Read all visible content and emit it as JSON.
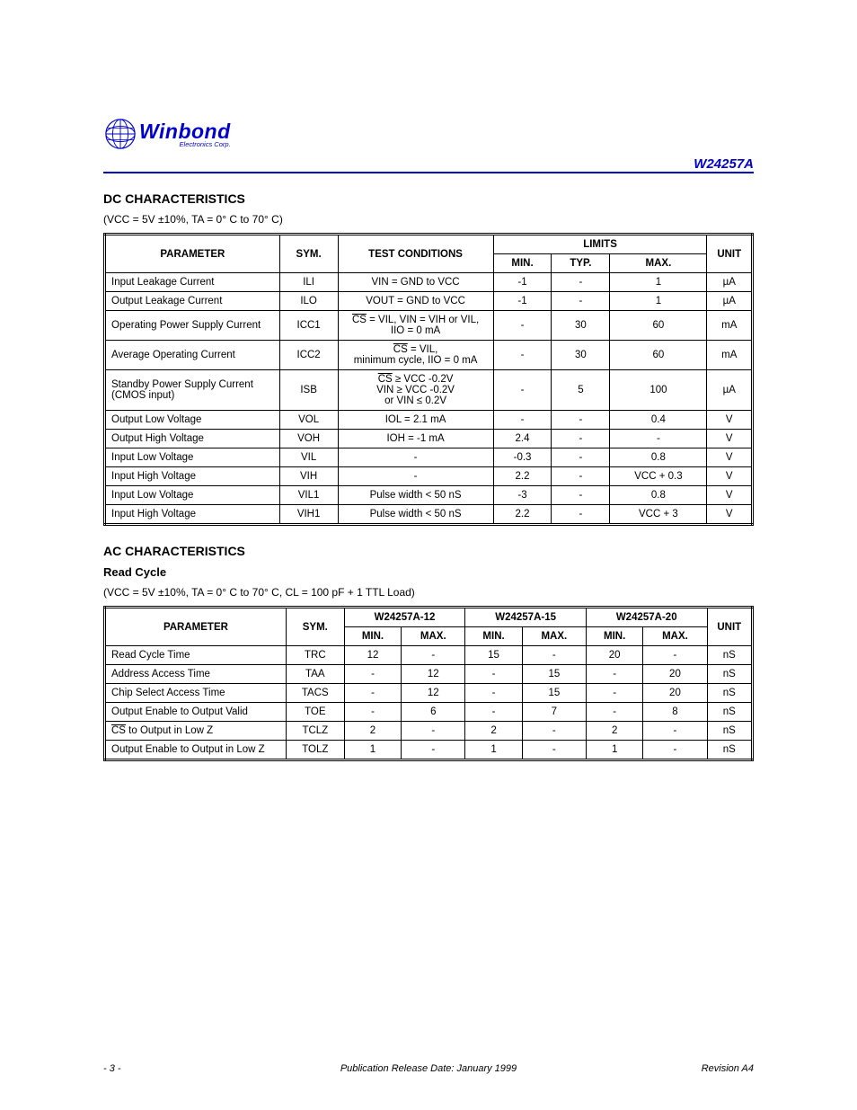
{
  "header": {
    "logo_main": "Winbond",
    "logo_sub": "Electronics Corp.",
    "part_number": "W24257A"
  },
  "dc": {
    "section_title": "DC CHARACTERISTICS",
    "condition": "(VCC = 5V ±10%, TA = 0° C to 70° C)",
    "columnset": "LIMITS",
    "cols": {
      "param": "PARAMETER",
      "sym": "SYM.",
      "cond": "TEST CONDITIONS",
      "min": "MIN.",
      "typ": "TYP.",
      "max": "MAX.",
      "unit": "UNIT"
    },
    "rows": [
      {
        "param": "Input Leakage Current",
        "sym": "ILI",
        "cond": "VIN = GND to VCC",
        "min": "-1",
        "typ": "-",
        "max": "1",
        "unit": "µA"
      },
      {
        "param": "Output Leakage Current",
        "sym": "ILO",
        "cond": "VOUT = GND to VCC",
        "min": "-1",
        "typ": "-",
        "max": "1",
        "unit": "µA"
      },
      {
        "param": "Operating Power Supply Current",
        "sym": "ICC1",
        "cond_html": "<span class=\"overline\">CS</span> = VIL, VIN = VIH or VIL,<br>IIO = 0 mA",
        "min": "-",
        "typ": "30",
        "max": "60",
        "unit": "mA"
      },
      {
        "param": "Average Operating Current",
        "sym": "ICC2",
        "cond_html": "<span class=\"overline\">CS</span> = VIL,<br>minimum cycle, IIO = 0 mA",
        "min": "-",
        "typ": "30",
        "max": "60",
        "unit": "mA"
      },
      {
        "param": "Standby Power Supply Current (CMOS input)",
        "sym": "ISB",
        "cond_html": "<span class=\"overline\">CS</span> ≥ VCC -0.2V<br>VIN ≥ VCC -0.2V<br>or VIN ≤ 0.2V",
        "min": "-",
        "typ": "5",
        "max": "100",
        "unit": "µA"
      },
      {
        "param": "Output Low Voltage",
        "sym": "VOL",
        "cond": "IOL = 2.1 mA",
        "min": "-",
        "typ": "-",
        "max": "0.4",
        "unit": "V"
      },
      {
        "param": "Output High Voltage",
        "sym": "VOH",
        "cond": "IOH = -1 mA",
        "min": "2.4",
        "typ": "-",
        "max": "-",
        "unit": "V"
      },
      {
        "param": "Input Low Voltage",
        "sym": "VIL",
        "cond": "-",
        "min": "-0.3",
        "typ": "-",
        "max": "0.8",
        "unit": "V"
      },
      {
        "param": "Input High Voltage",
        "sym": "VIH",
        "cond": "-",
        "min": "2.2",
        "typ": "-",
        "max": "VCC + 0.3",
        "unit": "V"
      },
      {
        "param": "Input Low Voltage",
        "sym": "VIL1",
        "cond": "Pulse width < 50 nS",
        "min": "-3",
        "typ": "-",
        "max": "0.8",
        "unit": "V"
      },
      {
        "param": "Input High Voltage",
        "sym": "VIH1",
        "cond": "Pulse width < 50 nS",
        "min": "2.2",
        "typ": "-",
        "max": "VCC + 3",
        "unit": "V"
      }
    ]
  },
  "ac": {
    "section_title": "AC CHARACTERISTICS",
    "subsection_title": "Read Cycle",
    "condition": "(VCC = 5V ±10%, TA = 0° C to 70° C, CL = 100 pF + 1 TTL Load)",
    "cols": {
      "param": "PARAMETER",
      "sym": "SYM.",
      "min": "MIN.",
      "max": "MAX.",
      "unit": "UNIT"
    },
    "colset": {
      "p12": "W24257A-12",
      "p15": "W24257A-15",
      "p20": "W24257A-20"
    },
    "rows": [
      {
        "param": "Read Cycle Time",
        "sym": "TRC",
        "c1min": "12",
        "c1max": "-",
        "c2min": "15",
        "c2max": "-",
        "c3min": "20",
        "c3max": "-",
        "unit": "nS"
      },
      {
        "param": "Address Access Time",
        "sym": "TAA",
        "c1min": "-",
        "c1max": "12",
        "c2min": "-",
        "c2max": "15",
        "c3min": "-",
        "c3max": "20",
        "unit": "nS"
      },
      {
        "param": "Chip Select Access Time",
        "sym": "TACS",
        "c1min": "-",
        "c1max": "12",
        "c2min": "-",
        "c2max": "15",
        "c3min": "-",
        "c3max": "20",
        "unit": "nS"
      },
      {
        "param": "Output Enable to Output Valid",
        "sym": "TOE",
        "c1min": "-",
        "c1max": "6",
        "c2min": "-",
        "c2max": "7",
        "c3min": "-",
        "c3max": "8",
        "unit": "nS"
      },
      {
        "param_html": "<span class=\"overline\">CS</span> to Output in Low Z",
        "sym": "TCLZ",
        "c1min": "2",
        "c1max": "-",
        "c2min": "2",
        "c2max": "-",
        "c3min": "2",
        "c3max": "-",
        "unit": "nS"
      },
      {
        "param": "Output Enable to Output in Low Z",
        "sym": "TOLZ",
        "c1min": "1",
        "c1max": "-",
        "c2min": "1",
        "c2max": "-",
        "c3min": "1",
        "c3max": "-",
        "unit": "nS"
      }
    ]
  },
  "footer": {
    "left": "Publication Release Date: January 1999",
    "center": "- 3 -",
    "right": "Revision A4"
  }
}
